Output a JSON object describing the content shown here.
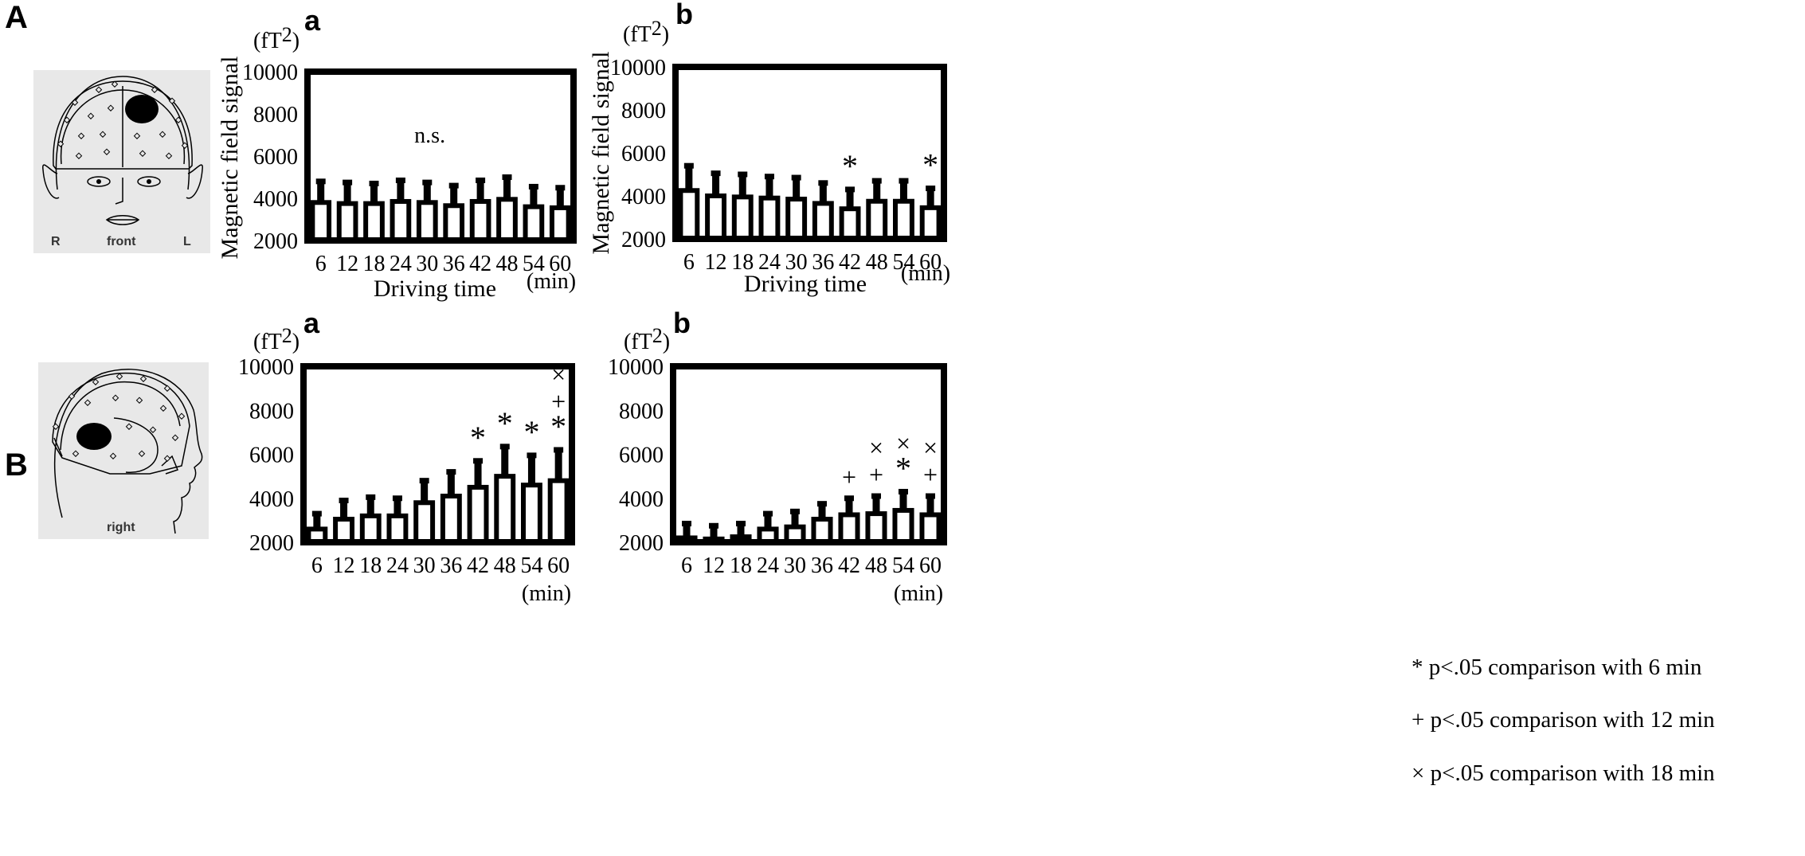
{
  "panels": {
    "A": {
      "letter": "A",
      "head": {
        "labels": [
          "R",
          "front",
          "L"
        ]
      }
    },
    "B": {
      "letter": "B",
      "head": {
        "labels": [
          "right"
        ]
      }
    }
  },
  "legend": [
    {
      "symbol": "*",
      "text": "* p<.05 comparison with 6 min"
    },
    {
      "symbol": "+",
      "text": "+ p<.05 comparison with 12 min"
    },
    {
      "symbol": "×",
      "text": "× p<.05 comparison with 18 min"
    }
  ],
  "colors": {
    "bar_fill": "#ffffff",
    "stroke": "#000000",
    "head_bg": "#e8e8e8"
  },
  "chart_data": [
    {
      "id": "A-a",
      "type": "bar",
      "subtitle": "a",
      "unit": "(fT2)",
      "ylabel": "Magnetic field signal",
      "xlabel": "Driving time",
      "xunit": "(min)",
      "categories": [
        "6",
        "12",
        "18",
        "24",
        "30",
        "36",
        "42",
        "48",
        "54",
        "60"
      ],
      "values": [
        3800,
        3750,
        3750,
        3850,
        3800,
        3650,
        3850,
        3950,
        3600,
        3550
      ],
      "errors": [
        1000,
        1000,
        950,
        1000,
        950,
        950,
        1000,
        1050,
        950,
        950
      ],
      "ylim": [
        2000,
        10000
      ],
      "yticks": [
        2000,
        4000,
        6000,
        8000,
        10000
      ],
      "annotations": [
        {
          "text": "n.s.",
          "position": "center"
        }
      ],
      "markers": [
        [],
        [],
        [],
        [],
        [],
        [],
        [],
        [],
        [],
        []
      ]
    },
    {
      "id": "A-b",
      "type": "bar",
      "subtitle": "b",
      "unit": "(fT2)",
      "ylabel": "Magnetic field signal",
      "xlabel": "Driving time",
      "xunit": "(min)",
      "categories": [
        "6",
        "12",
        "18",
        "24",
        "30",
        "36",
        "42",
        "48",
        "54",
        "60"
      ],
      "values": [
        4250,
        4000,
        3950,
        3900,
        3850,
        3650,
        3400,
        3750,
        3750,
        3450
      ],
      "errors": [
        1150,
        1050,
        1050,
        1000,
        1000,
        950,
        900,
        950,
        950,
        900
      ],
      "ylim": [
        2000,
        10000
      ],
      "yticks": [
        2000,
        4000,
        6000,
        8000,
        10000
      ],
      "annotations": [],
      "markers": [
        [],
        [],
        [],
        [],
        [],
        [],
        [
          "*"
        ],
        [],
        [],
        [
          "*"
        ]
      ]
    },
    {
      "id": "B-a",
      "type": "bar",
      "subtitle": "a",
      "unit": "(fT2)",
      "ylabel": "",
      "xlabel": "",
      "xunit": "(min)",
      "categories": [
        "6",
        "12",
        "18",
        "24",
        "30",
        "36",
        "42",
        "48",
        "54",
        "60"
      ],
      "values": [
        2600,
        3050,
        3200,
        3200,
        3800,
        4100,
        4500,
        5000,
        4600,
        4800
      ],
      "errors": [
        700,
        850,
        850,
        800,
        1000,
        1100,
        1200,
        1350,
        1350,
        1400
      ],
      "ylim": [
        2000,
        10000
      ],
      "yticks": [
        2000,
        4000,
        6000,
        8000,
        10000
      ],
      "annotations": [],
      "markers": [
        [],
        [],
        [],
        [],
        [],
        [],
        [
          "*"
        ],
        [
          "*"
        ],
        [
          "*"
        ],
        [
          "*",
          "+",
          "×"
        ]
      ]
    },
    {
      "id": "B-b",
      "type": "bar",
      "subtitle": "b",
      "unit": "(fT2)",
      "ylabel": "",
      "xlabel": "",
      "xunit": "(min)",
      "categories": [
        "6",
        "12",
        "18",
        "24",
        "30",
        "36",
        "42",
        "48",
        "54",
        "60"
      ],
      "values": [
        2200,
        2150,
        2250,
        2600,
        2700,
        3050,
        3250,
        3300,
        3450,
        3250
      ],
      "errors": [
        650,
        600,
        600,
        700,
        700,
        700,
        750,
        800,
        850,
        850
      ],
      "ylim": [
        2000,
        10000
      ],
      "yticks": [
        2000,
        4000,
        6000,
        8000,
        10000
      ],
      "annotations": [],
      "markers": [
        [],
        [],
        [],
        [],
        [],
        [],
        [
          "+"
        ],
        [
          "+",
          "×"
        ],
        [
          "*",
          "×"
        ],
        [
          "+",
          "×"
        ]
      ]
    }
  ]
}
